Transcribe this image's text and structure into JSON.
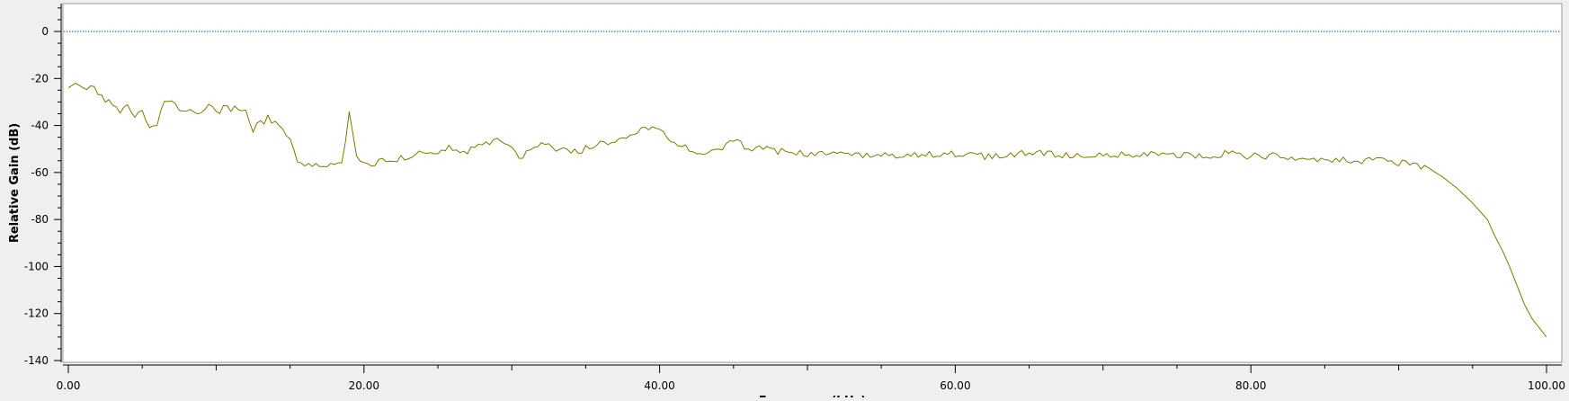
{
  "chart_data": {
    "type": "line",
    "xlabel": "Frequency (kHz)",
    "ylabel": "Relative Gain (dB)",
    "xlim": [
      0,
      100
    ],
    "ylim": [
      -140,
      12
    ],
    "x_ticks": [
      "0.00",
      "20.00",
      "40.00",
      "60.00",
      "80.00",
      "100.00"
    ],
    "y_ticks": [
      "0",
      "-20",
      "-40",
      "-60",
      "-80",
      "-100",
      "-120",
      "-140"
    ],
    "grid": false,
    "reference_line": {
      "y": 0,
      "color": "#2a7fbf"
    },
    "series": [
      {
        "color": "#7a7a00",
        "x": [
          0,
          0.5,
          1,
          1.5,
          2,
          2.5,
          3,
          3.5,
          4,
          4.5,
          5,
          5.5,
          6,
          6.5,
          7,
          7.5,
          8,
          8.5,
          9,
          9.5,
          10,
          10.5,
          11,
          11.5,
          12,
          12.5,
          13,
          13.5,
          14,
          14.5,
          15,
          15.5,
          16,
          16.5,
          17,
          17.5,
          18,
          18.5,
          19,
          19.5,
          20,
          20.5,
          21,
          21.5,
          22,
          23,
          24,
          25,
          26,
          27,
          28,
          29,
          30,
          30.5,
          31,
          32,
          33,
          34,
          35,
          36,
          37,
          38,
          39,
          40,
          41,
          42,
          43,
          44,
          44.5,
          45,
          46,
          47,
          48,
          49,
          50,
          52,
          54,
          56,
          58,
          60,
          62,
          64,
          66,
          68,
          70,
          72,
          74,
          76,
          78,
          80,
          82,
          84,
          86,
          88,
          89,
          90,
          91,
          92,
          93,
          94,
          95,
          96,
          96.5,
          97,
          97.5,
          98,
          98.5,
          99,
          99.5,
          100
        ],
        "y": [
          -24,
          -22,
          -24,
          -23,
          -27,
          -29,
          -31,
          -34,
          -31,
          -35,
          -34,
          -40,
          -39,
          -31,
          -29,
          -33,
          -34,
          -33,
          -36,
          -32,
          -35,
          -33,
          -33,
          -32,
          -35,
          -42,
          -39,
          -37,
          -38,
          -42,
          -47,
          -56,
          -57,
          -57,
          -58,
          -57,
          -56,
          -57,
          -35,
          -52,
          -56,
          -57,
          -55,
          -56,
          -55,
          -53,
          -51,
          -52,
          -49,
          -51,
          -48,
          -47,
          -50,
          -55,
          -50,
          -47,
          -50,
          -52,
          -50,
          -48,
          -47,
          -45,
          -41,
          -43,
          -47,
          -50,
          -53,
          -51,
          -47,
          -46,
          -50,
          -49,
          -51,
          -51,
          -52,
          -52,
          -53,
          -53,
          -52,
          -52,
          -53,
          -52,
          -52,
          -53,
          -53,
          -52,
          -52,
          -53,
          -52,
          -53,
          -53,
          -54,
          -55,
          -55,
          -55,
          -56,
          -56,
          -58,
          -62,
          -67,
          -73,
          -80,
          -87,
          -93,
          -100,
          -108,
          -116,
          -122,
          -126,
          -130
        ]
      }
    ]
  }
}
